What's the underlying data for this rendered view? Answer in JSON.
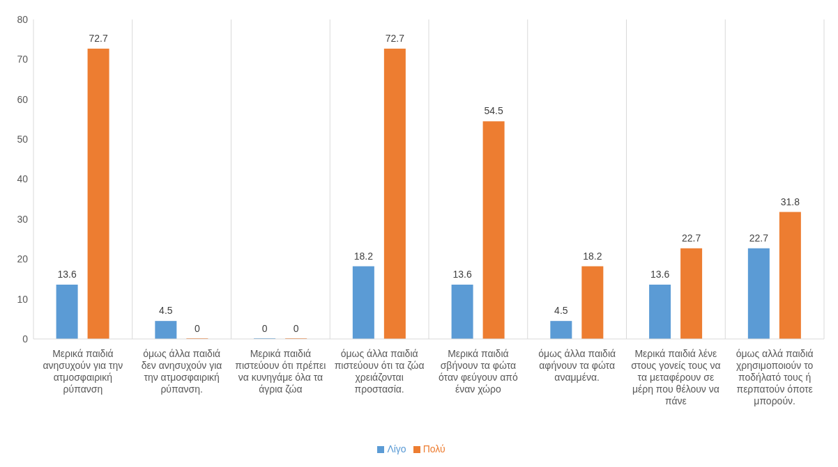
{
  "chart_data": {
    "type": "bar",
    "categories": [
      "Μερικά παιδιά ανησυχούν για την ατμοσφαιρική ρύπανση",
      "όμως άλλα παιδιά δεν ανησυχούν για την ατμοσφαιρική ρύπανση.",
      "Μερικά παιδιά πιστεύουν ότι πρέπει να κυνηγάμε όλα τα άγρια ζώα",
      "όμως άλλα παιδιά πιστεύουν ότι τα ζώα χρειάζονται προστασία.",
      "Μερικά παιδιά σβήνουν τα φώτα όταν φεύγουν από έναν χώρο",
      "όμως άλλα παιδιά αφήνουν τα φώτα αναμμένα.",
      "Μερικά παιδιά λένε στους γονείς τους να τα μεταφέρουν σε μέρη που θέλουν να πάνε",
      "όμως αλλά παιδιά χρησιμοποιούν το ποδήλατό τους ή περπατούν όποτε μπορούν."
    ],
    "series": [
      {
        "name": "Λίγο",
        "color": "#5b9bd5",
        "values": [
          13.6,
          4.5,
          0,
          18.2,
          13.6,
          4.5,
          13.6,
          22.7
        ]
      },
      {
        "name": "Πολύ",
        "color": "#ed7d31",
        "values": [
          72.7,
          0,
          0,
          72.7,
          54.5,
          18.2,
          22.7,
          31.8
        ]
      }
    ],
    "ylim": [
      0,
      80
    ],
    "yticks": [
      0,
      10,
      20,
      30,
      40,
      50,
      60,
      70,
      80
    ],
    "grid": "x",
    "legend": "bottom",
    "data_labels": true
  }
}
